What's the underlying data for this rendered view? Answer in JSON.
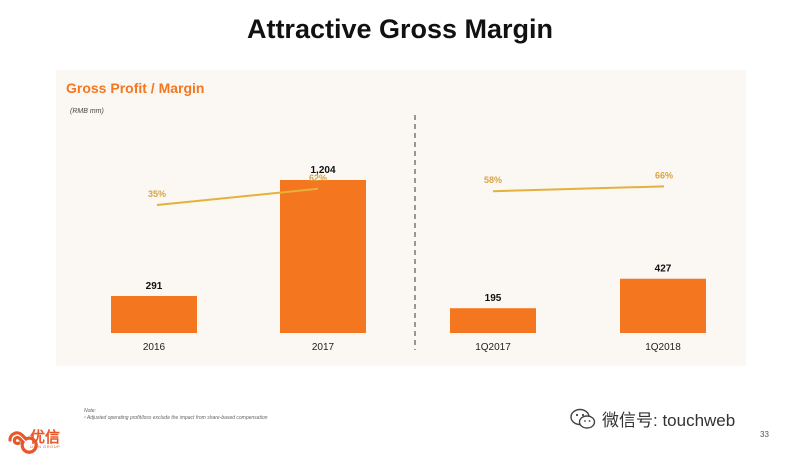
{
  "slide": {
    "title": "Attractive Gross Margin",
    "panel_title": "Gross Profit / Margin",
    "unit": "(RMB mm)",
    "footnote_label": "Note:",
    "footnote_text": "¹ Adjusted operating profit/loss exclude the impact from share-based compensation",
    "page_number": "33"
  },
  "logo": {
    "text_cn": "优信",
    "text_en": "UXIN GROUP",
    "color": "#e8572a"
  },
  "watermark": {
    "text": "微信号: touchweb",
    "icon": "wechat-icon"
  },
  "colors": {
    "bar": "#f4761f",
    "line": "#e3b23c",
    "margin_label": "#d9a441",
    "divider": "#777777"
  },
  "chart_data": [
    {
      "type": "bar",
      "name": "annual",
      "categories": [
        "2016",
        "2017"
      ],
      "values": [
        291,
        1204
      ],
      "value_labels": [
        "291",
        "1,204"
      ],
      "margin_line": {
        "values": [
          35,
          62
        ],
        "labels": [
          "35%",
          "62%"
        ]
      },
      "ylabel": "(RMB mm)"
    },
    {
      "type": "bar",
      "name": "quarterly",
      "categories": [
        "1Q2017",
        "1Q2018"
      ],
      "values": [
        195,
        427
      ],
      "value_labels": [
        "195",
        "427"
      ],
      "margin_line": {
        "values": [
          58,
          66
        ],
        "labels": [
          "58%",
          "66%"
        ]
      },
      "ylabel": "(RMB mm)"
    }
  ]
}
